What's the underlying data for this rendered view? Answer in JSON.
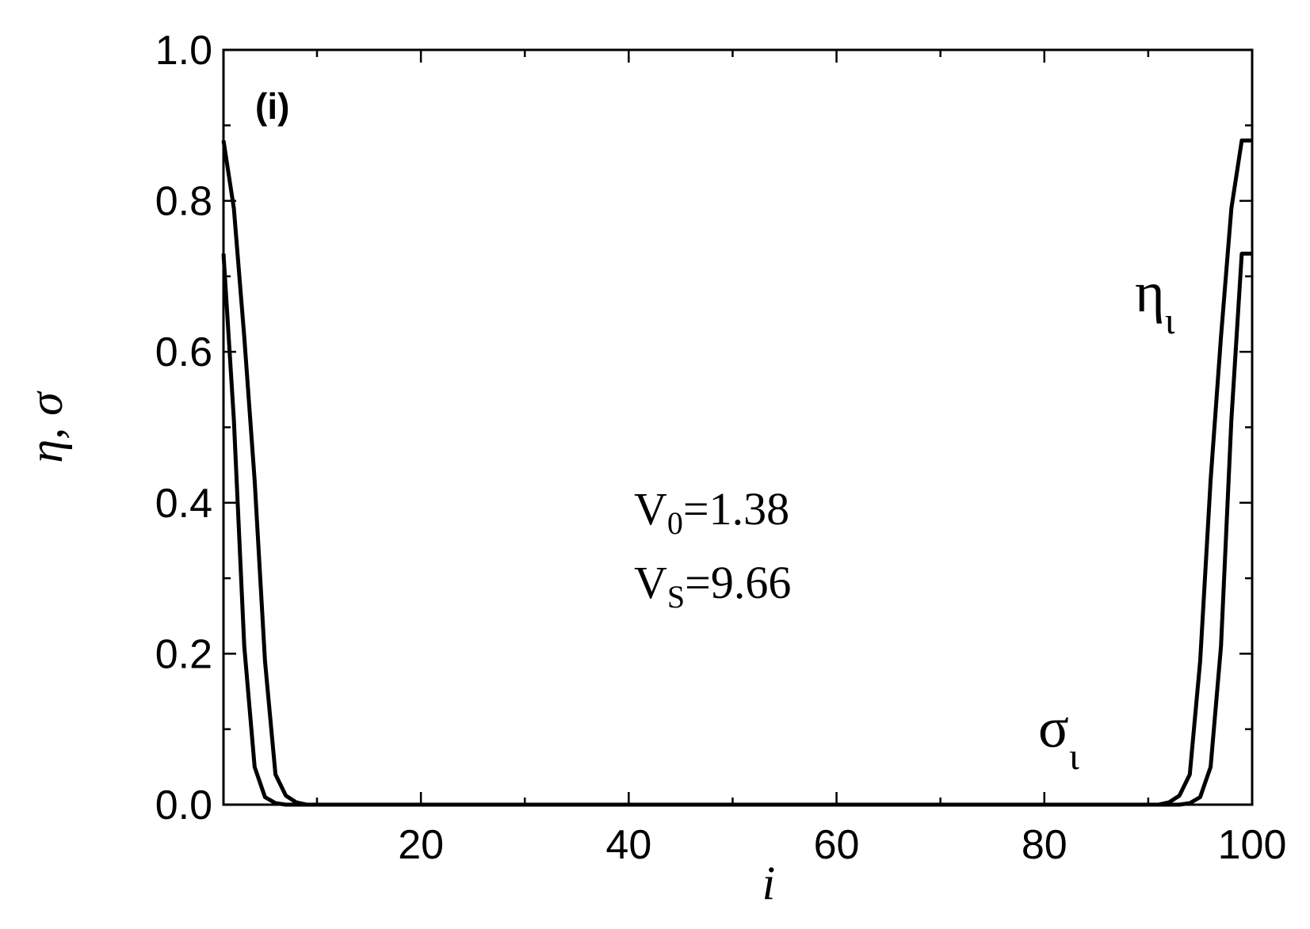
{
  "chart_data": {
    "type": "line",
    "panel_label": "(i)",
    "xlabel": "i",
    "ylabel": "η, σ",
    "xlim": [
      1,
      100
    ],
    "ylim": [
      0.0,
      1.0
    ],
    "x_ticks": [
      20,
      40,
      60,
      80,
      100
    ],
    "x_tick_labels": [
      "20",
      "40",
      "60",
      "80",
      "100"
    ],
    "y_ticks": [
      0.0,
      0.2,
      0.4,
      0.6,
      0.8,
      1.0
    ],
    "y_tick_labels": [
      "0.0",
      "0.2",
      "0.4",
      "0.6",
      "0.8",
      "1.0"
    ],
    "annotations": {
      "v0": {
        "main": "V",
        "sub": "0",
        "rest": "=1.38"
      },
      "vs": {
        "main": "V",
        "sub": "S",
        "rest": "=9.66"
      }
    },
    "series": [
      {
        "name": "η",
        "label_main": "η",
        "label_sub": "ι",
        "x": [
          1,
          2,
          3,
          4,
          5,
          6,
          7,
          8,
          9,
          10,
          11,
          12,
          89,
          90,
          91,
          92,
          93,
          94,
          95,
          96,
          97,
          98,
          99,
          100
        ],
        "values": [
          0.88,
          0.79,
          0.62,
          0.43,
          0.19,
          0.04,
          0.012,
          0.003,
          0.0,
          0.0,
          0.0,
          0.0,
          0.0,
          0.0,
          0.0,
          0.003,
          0.012,
          0.04,
          0.19,
          0.43,
          0.62,
          0.79,
          0.88,
          0.88
        ]
      },
      {
        "name": "σ",
        "label_main": "σ",
        "label_sub": "ι",
        "x": [
          1,
          2,
          3,
          4,
          5,
          6,
          7,
          8,
          9,
          10,
          91,
          92,
          93,
          94,
          95,
          96,
          97,
          98,
          99,
          100
        ],
        "values": [
          0.73,
          0.51,
          0.21,
          0.05,
          0.01,
          0.002,
          0.0,
          0.0,
          0.0,
          0.0,
          0.0,
          0.0,
          0.0,
          0.002,
          0.01,
          0.05,
          0.21,
          0.51,
          0.73,
          0.73
        ]
      }
    ]
  }
}
